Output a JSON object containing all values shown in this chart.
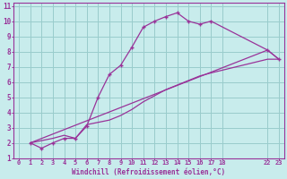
{
  "bg_color": "#c8ecec",
  "line_color": "#993399",
  "grid_color": "#99cccc",
  "xlabel": "Windchill (Refroidissement éolien,°C)",
  "xlim": [
    -0.5,
    23.5
  ],
  "ylim": [
    1,
    11.2
  ],
  "yticks": [
    1,
    2,
    3,
    4,
    5,
    6,
    7,
    8,
    9,
    10,
    11
  ],
  "xticks": [
    0,
    1,
    2,
    3,
    4,
    5,
    6,
    7,
    8,
    9,
    10,
    11,
    12,
    13,
    14,
    15,
    16,
    17,
    18,
    22,
    23
  ],
  "xtick_labels": [
    "0",
    "1",
    "2",
    "3",
    "4",
    "5",
    "6",
    "7",
    "8",
    "9",
    "10",
    "11",
    "12",
    "13",
    "14",
    "15",
    "16",
    "17",
    "18",
    "22",
    "23"
  ],
  "line1_x": [
    1,
    2,
    3,
    4,
    5,
    6,
    7,
    8,
    9,
    10,
    11,
    12,
    13,
    14,
    15,
    16,
    17,
    22,
    23
  ],
  "line1_y": [
    2.0,
    1.65,
    2.0,
    2.3,
    2.3,
    3.1,
    5.0,
    6.5,
    7.1,
    8.3,
    9.6,
    10.0,
    10.3,
    10.55,
    10.0,
    9.8,
    10.0,
    8.1,
    7.5
  ],
  "line2_x": [
    1,
    22,
    23
  ],
  "line2_y": [
    2.0,
    8.1,
    7.5
  ],
  "line3_x": [
    1,
    3,
    4,
    5,
    6,
    7,
    8,
    9,
    10,
    11,
    12,
    13,
    14,
    15,
    16,
    17,
    22,
    23
  ],
  "line3_y": [
    2.0,
    2.3,
    2.5,
    2.3,
    3.2,
    3.35,
    3.5,
    3.8,
    4.2,
    4.7,
    5.1,
    5.5,
    5.8,
    6.1,
    6.4,
    6.6,
    7.5,
    7.5
  ]
}
